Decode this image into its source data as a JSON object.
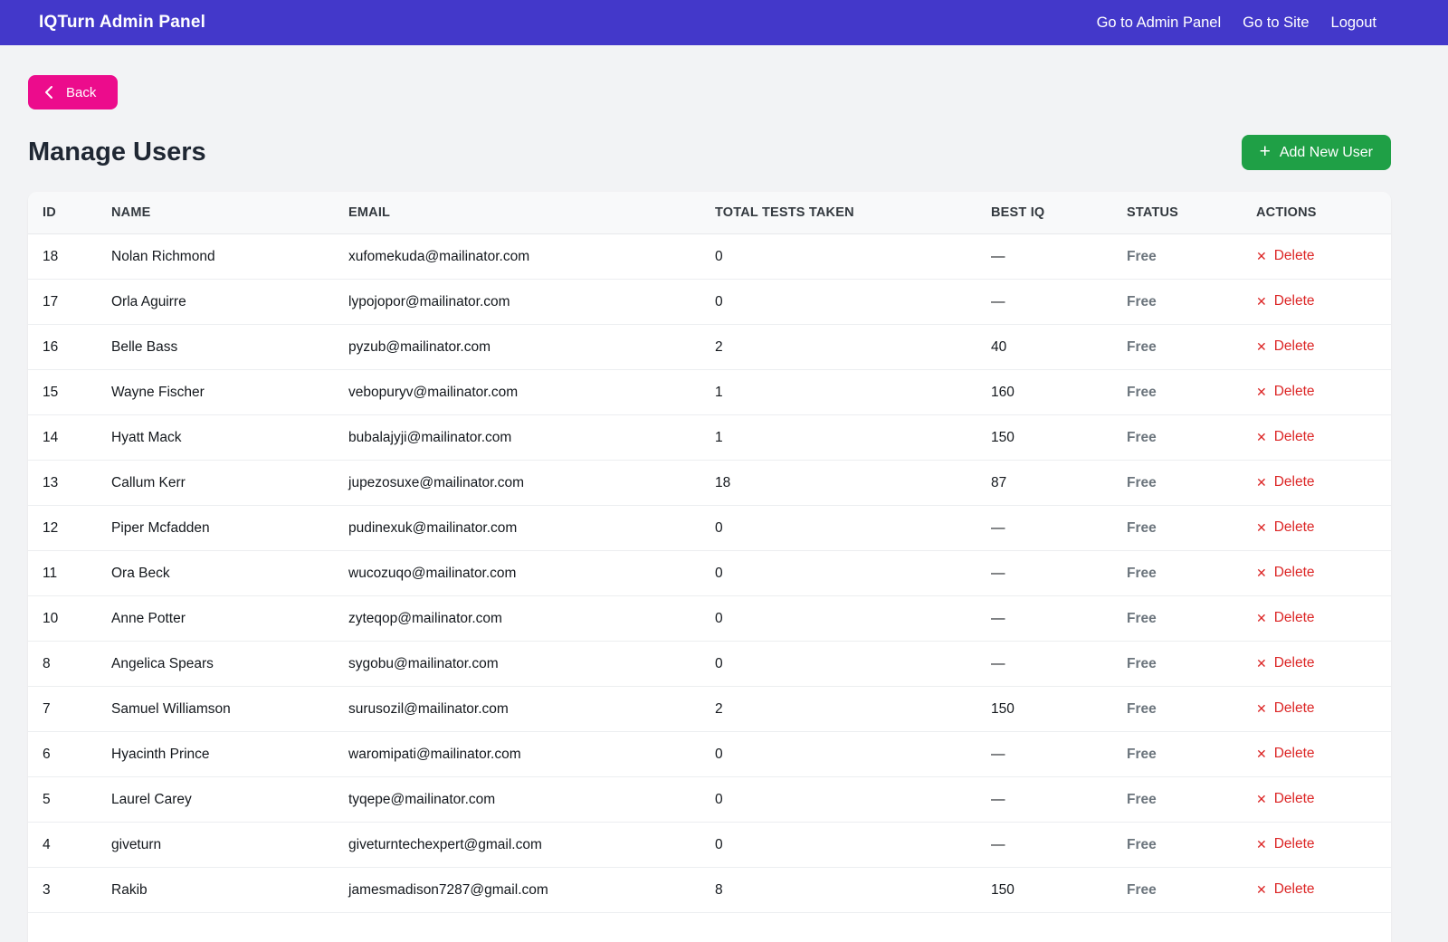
{
  "navbar": {
    "brand": "IQTurn Admin Panel",
    "links": [
      {
        "label": "Go to Admin Panel"
      },
      {
        "label": "Go to Site"
      },
      {
        "label": "Logout"
      }
    ]
  },
  "page": {
    "back_label": "Back",
    "title": "Manage Users",
    "add_user_label": "Add New User",
    "add_user_icon": "+"
  },
  "table": {
    "columns": [
      "ID",
      "NAME",
      "EMAIL",
      "TOTAL TESTS TAKEN",
      "BEST IQ",
      "STATUS",
      "ACTIONS"
    ],
    "delete_icon": "✕",
    "delete_label": "Delete",
    "rows": [
      {
        "id": "18",
        "name": "Nolan Richmond",
        "email": "xufomekuda@mailinator.com",
        "tests": "0",
        "best_iq": "—",
        "status": "Free"
      },
      {
        "id": "17",
        "name": "Orla Aguirre",
        "email": "lypojopor@mailinator.com",
        "tests": "0",
        "best_iq": "—",
        "status": "Free"
      },
      {
        "id": "16",
        "name": "Belle Bass",
        "email": "pyzub@mailinator.com",
        "tests": "2",
        "best_iq": "40",
        "status": "Free"
      },
      {
        "id": "15",
        "name": "Wayne Fischer",
        "email": "vebopuryv@mailinator.com",
        "tests": "1",
        "best_iq": "160",
        "status": "Free"
      },
      {
        "id": "14",
        "name": "Hyatt Mack",
        "email": "bubalajyji@mailinator.com",
        "tests": "1",
        "best_iq": "150",
        "status": "Free"
      },
      {
        "id": "13",
        "name": "Callum Kerr",
        "email": "jupezosuxe@mailinator.com",
        "tests": "18",
        "best_iq": "87",
        "status": "Free"
      },
      {
        "id": "12",
        "name": "Piper Mcfadden",
        "email": "pudinexuk@mailinator.com",
        "tests": "0",
        "best_iq": "—",
        "status": "Free"
      },
      {
        "id": "11",
        "name": "Ora Beck",
        "email": "wucozuqo@mailinator.com",
        "tests": "0",
        "best_iq": "—",
        "status": "Free"
      },
      {
        "id": "10",
        "name": "Anne Potter",
        "email": "zyteqop@mailinator.com",
        "tests": "0",
        "best_iq": "—",
        "status": "Free"
      },
      {
        "id": "8",
        "name": "Angelica Spears",
        "email": "sygobu@mailinator.com",
        "tests": "0",
        "best_iq": "—",
        "status": "Free"
      },
      {
        "id": "7",
        "name": "Samuel Williamson",
        "email": "surusozil@mailinator.com",
        "tests": "2",
        "best_iq": "150",
        "status": "Free"
      },
      {
        "id": "6",
        "name": "Hyacinth Prince",
        "email": "waromipati@mailinator.com",
        "tests": "0",
        "best_iq": "—",
        "status": "Free"
      },
      {
        "id": "5",
        "name": "Laurel Carey",
        "email": "tyqepe@mailinator.com",
        "tests": "0",
        "best_iq": "—",
        "status": "Free"
      },
      {
        "id": "4",
        "name": "giveturn",
        "email": "giveturntechexpert@gmail.com",
        "tests": "0",
        "best_iq": "—",
        "status": "Free"
      },
      {
        "id": "3",
        "name": "Rakib",
        "email": "jamesmadison7287@gmail.com",
        "tests": "8",
        "best_iq": "150",
        "status": "Free"
      }
    ]
  },
  "colors": {
    "navbar_bg": "#4338CA",
    "back_button_bg": "#EC0C8C",
    "add_button_bg": "#1FA046",
    "delete_text": "#DC2626",
    "status_text": "#6C757D"
  }
}
